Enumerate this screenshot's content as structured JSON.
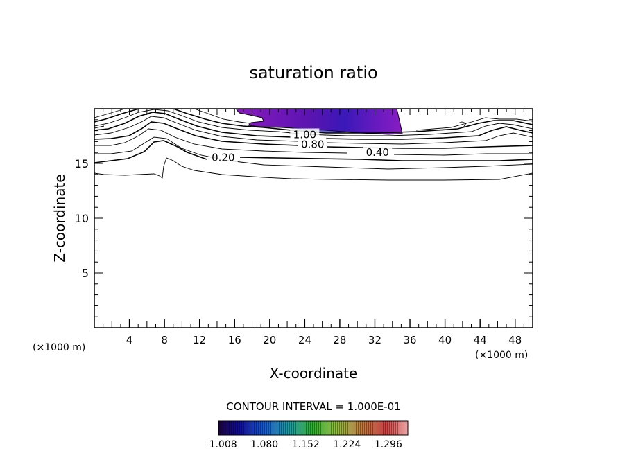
{
  "chart_data": {
    "type": "contour",
    "title": "saturation ratio",
    "xlabel": "X-coordinate",
    "ylabel": "Z-coordinate",
    "x_unit_left": "(×1000 m)",
    "x_unit_right": "(×1000 m)",
    "xlim": [
      0,
      50
    ],
    "ylim": [
      0,
      20
    ],
    "x_ticks": [
      4,
      8,
      12,
      16,
      20,
      24,
      28,
      32,
      36,
      40,
      44,
      48
    ],
    "y_ticks": [
      5,
      10,
      15
    ],
    "contour_interval_text": "CONTOUR INTERVAL = 1.000E-01",
    "contour_labels": [
      {
        "text": "0.20",
        "x": 14.7,
        "y": 15.4
      },
      {
        "text": "0.40",
        "x": 32.3,
        "y": 15.9
      },
      {
        "text": "0.80",
        "x": 24.9,
        "y": 16.6
      },
      {
        "text": "1.00",
        "x": 24.0,
        "y": 17.5
      }
    ],
    "colorbar": {
      "tick_labels": [
        "1.008",
        "1.080",
        "1.152",
        "1.224",
        "1.296"
      ],
      "range": [
        1.0,
        1.33
      ]
    },
    "supersaturated_region": {
      "x_range": [
        16,
        35
      ],
      "y_range": [
        17.8,
        20
      ]
    }
  }
}
